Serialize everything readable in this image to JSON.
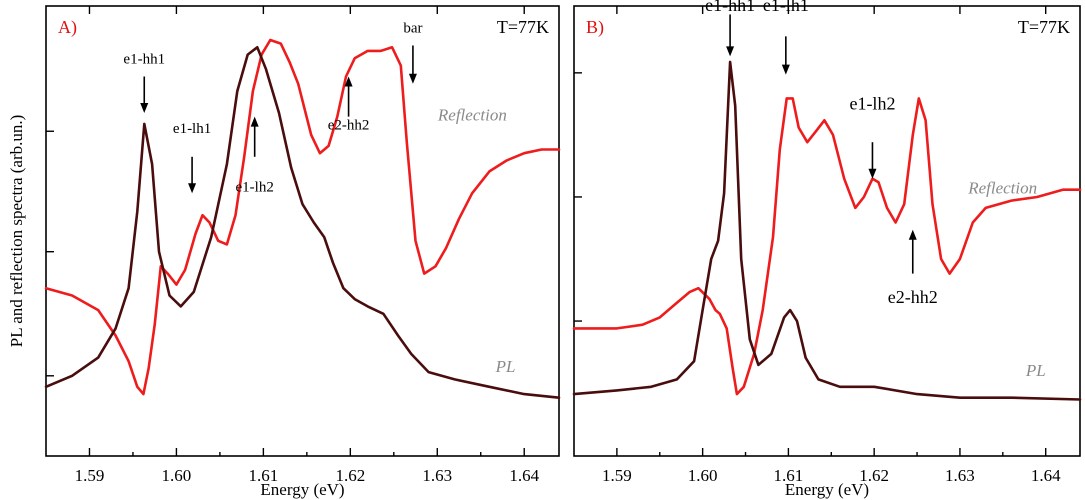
{
  "chart_data": [
    {
      "panel": "A)",
      "temperature": "T=77K",
      "type": "line",
      "xlabel": "Energy (eV)",
      "ylabel": "PL and reflection spectra (arb.un.)",
      "xlim": [
        1.585,
        1.644
      ],
      "ylim": [
        0,
        1
      ],
      "xticks": [
        1.59,
        1.6,
        1.61,
        1.62,
        1.63,
        1.64
      ],
      "xtick_labels": [
        "1.59",
        "1.60",
        "1.61",
        "1.62",
        "1.63",
        "1.64"
      ],
      "yticks": [
        0.08,
        0.42,
        0.75
      ],
      "series": [
        {
          "name": "Reflection",
          "color": "#ee1c1c",
          "label_at": [
            1.638,
            0.78
          ],
          "points": [
            [
              1.585,
              0.32
            ],
            [
              1.588,
              0.3
            ],
            [
              1.591,
              0.26
            ],
            [
              1.593,
              0.19
            ],
            [
              1.5945,
              0.12
            ],
            [
              1.5955,
              0.05
            ],
            [
              1.5962,
              0.03
            ],
            [
              1.5968,
              0.1
            ],
            [
              1.5975,
              0.22
            ],
            [
              1.5982,
              0.38
            ],
            [
              1.599,
              0.36
            ],
            [
              1.6,
              0.33
            ],
            [
              1.601,
              0.37
            ],
            [
              1.6022,
              0.47
            ],
            [
              1.603,
              0.52
            ],
            [
              1.6038,
              0.5
            ],
            [
              1.6048,
              0.45
            ],
            [
              1.6058,
              0.44
            ],
            [
              1.6068,
              0.52
            ],
            [
              1.6078,
              0.68
            ],
            [
              1.6088,
              0.86
            ],
            [
              1.6098,
              0.96
            ],
            [
              1.6108,
              1.0
            ],
            [
              1.612,
              0.99
            ],
            [
              1.613,
              0.94
            ],
            [
              1.614,
              0.88
            ],
            [
              1.6155,
              0.74
            ],
            [
              1.6165,
              0.69
            ],
            [
              1.6175,
              0.71
            ],
            [
              1.6185,
              0.79
            ],
            [
              1.6195,
              0.9
            ],
            [
              1.6205,
              0.95
            ],
            [
              1.622,
              0.97
            ],
            [
              1.6235,
              0.97
            ],
            [
              1.6248,
              0.98
            ],
            [
              1.6258,
              0.93
            ],
            [
              1.6265,
              0.72
            ],
            [
              1.6275,
              0.45
            ],
            [
              1.6285,
              0.36
            ],
            [
              1.6298,
              0.38
            ],
            [
              1.631,
              0.43
            ],
            [
              1.6325,
              0.51
            ],
            [
              1.634,
              0.58
            ],
            [
              1.636,
              0.64
            ],
            [
              1.638,
              0.67
            ],
            [
              1.64,
              0.69
            ],
            [
              1.642,
              0.7
            ],
            [
              1.644,
              0.7
            ]
          ]
        },
        {
          "name": "PL",
          "color": "#4a0d0d",
          "label_at": [
            1.639,
            0.09
          ],
          "points": [
            [
              1.585,
              0.05
            ],
            [
              1.588,
              0.08
            ],
            [
              1.591,
              0.13
            ],
            [
              1.593,
              0.21
            ],
            [
              1.5945,
              0.32
            ],
            [
              1.5955,
              0.53
            ],
            [
              1.5963,
              0.77
            ],
            [
              1.5972,
              0.66
            ],
            [
              1.598,
              0.42
            ],
            [
              1.5992,
              0.3
            ],
            [
              1.6005,
              0.27
            ],
            [
              1.602,
              0.31
            ],
            [
              1.604,
              0.46
            ],
            [
              1.6058,
              0.66
            ],
            [
              1.607,
              0.86
            ],
            [
              1.6082,
              0.96
            ],
            [
              1.6093,
              0.98
            ],
            [
              1.6103,
              0.92
            ],
            [
              1.6118,
              0.8
            ],
            [
              1.6132,
              0.65
            ],
            [
              1.6145,
              0.55
            ],
            [
              1.6158,
              0.5
            ],
            [
              1.617,
              0.46
            ],
            [
              1.618,
              0.39
            ],
            [
              1.6192,
              0.32
            ],
            [
              1.6205,
              0.29
            ],
            [
              1.622,
              0.27
            ],
            [
              1.6238,
              0.25
            ],
            [
              1.6255,
              0.19
            ],
            [
              1.627,
              0.14
            ],
            [
              1.629,
              0.09
            ],
            [
              1.632,
              0.07
            ],
            [
              1.636,
              0.05
            ],
            [
              1.64,
              0.03
            ],
            [
              1.644,
              0.02
            ]
          ]
        }
      ],
      "annotations": [
        {
          "text": "e1-hh1",
          "x": 1.5963,
          "text_y": 0.935,
          "arrow_from": 0.9,
          "arrow_to": 0.8
        },
        {
          "text": "e1-lh1",
          "x": 1.6018,
          "text_y": 0.745,
          "arrow_from": 0.68,
          "arrow_to": 0.58
        },
        {
          "text": "e1-lh2",
          "x": 1.609,
          "text_y": 0.585,
          "arrow_from": 0.68,
          "arrow_to": 0.79
        },
        {
          "text": "e2-hh2",
          "x": 1.6198,
          "text_y": 0.755,
          "arrow_from": 0.79,
          "arrow_to": 0.9
        },
        {
          "text": "bar",
          "x": 1.6272,
          "text_y": 1.02,
          "arrow_from": 0.985,
          "arrow_to": 0.88
        }
      ]
    },
    {
      "panel": "B)",
      "temperature": "T=77K",
      "type": "line",
      "xlabel": "Energy (eV)",
      "ylabel": "",
      "xlim": [
        1.585,
        1.644
      ],
      "ylim": [
        0,
        1
      ],
      "xticks": [
        1.59,
        1.6,
        1.61,
        1.62,
        1.63,
        1.64
      ],
      "xtick_labels": [
        "1.59",
        "1.60",
        "1.61",
        "1.62",
        "1.63",
        "1.64"
      ],
      "yticks": [
        0.23,
        0.57,
        0.91
      ],
      "series": [
        {
          "name": "Reflection",
          "color": "#ee1c1c",
          "label_at": [
            1.639,
            0.58
          ],
          "points": [
            [
              1.585,
              0.21
            ],
            [
              1.59,
              0.21
            ],
            [
              1.593,
              0.22
            ],
            [
              1.595,
              0.24
            ],
            [
              1.597,
              0.28
            ],
            [
              1.5985,
              0.31
            ],
            [
              1.5995,
              0.32
            ],
            [
              1.6008,
              0.29
            ],
            [
              1.6015,
              0.26
            ],
            [
              1.602,
              0.25
            ],
            [
              1.6028,
              0.21
            ],
            [
              1.6035,
              0.1
            ],
            [
              1.604,
              0.03
            ],
            [
              1.6048,
              0.05
            ],
            [
              1.606,
              0.14
            ],
            [
              1.607,
              0.26
            ],
            [
              1.6082,
              0.46
            ],
            [
              1.609,
              0.7
            ],
            [
              1.6098,
              0.84
            ],
            [
              1.6105,
              0.84
            ],
            [
              1.6112,
              0.76
            ],
            [
              1.6122,
              0.72
            ],
            [
              1.6132,
              0.75
            ],
            [
              1.6142,
              0.78
            ],
            [
              1.6152,
              0.74
            ],
            [
              1.6165,
              0.62
            ],
            [
              1.6178,
              0.54
            ],
            [
              1.6188,
              0.57
            ],
            [
              1.6198,
              0.62
            ],
            [
              1.6205,
              0.61
            ],
            [
              1.6215,
              0.54
            ],
            [
              1.6225,
              0.5
            ],
            [
              1.6235,
              0.55
            ],
            [
              1.6245,
              0.74
            ],
            [
              1.6252,
              0.84
            ],
            [
              1.626,
              0.78
            ],
            [
              1.6268,
              0.55
            ],
            [
              1.6278,
              0.4
            ],
            [
              1.6288,
              0.36
            ],
            [
              1.63,
              0.4
            ],
            [
              1.6315,
              0.5
            ],
            [
              1.633,
              0.54
            ],
            [
              1.636,
              0.56
            ],
            [
              1.639,
              0.57
            ],
            [
              1.642,
              0.59
            ],
            [
              1.644,
              0.59
            ]
          ]
        },
        {
          "name": "PL",
          "color": "#4a0d0d",
          "label_at": [
            1.64,
            0.08
          ],
          "points": [
            [
              1.585,
              0.03
            ],
            [
              1.59,
              0.04
            ],
            [
              1.594,
              0.05
            ],
            [
              1.597,
              0.07
            ],
            [
              1.599,
              0.12
            ],
            [
              1.6,
              0.26
            ],
            [
              1.601,
              0.4
            ],
            [
              1.6018,
              0.45
            ],
            [
              1.6025,
              0.58
            ],
            [
              1.6032,
              0.94
            ],
            [
              1.6038,
              0.82
            ],
            [
              1.6045,
              0.4
            ],
            [
              1.6055,
              0.18
            ],
            [
              1.6065,
              0.11
            ],
            [
              1.608,
              0.14
            ],
            [
              1.6095,
              0.24
            ],
            [
              1.6102,
              0.26
            ],
            [
              1.611,
              0.23
            ],
            [
              1.612,
              0.13
            ],
            [
              1.6135,
              0.07
            ],
            [
              1.616,
              0.05
            ],
            [
              1.62,
              0.05
            ],
            [
              1.625,
              0.03
            ],
            [
              1.63,
              0.02
            ],
            [
              1.636,
              0.02
            ],
            [
              1.644,
              0.015
            ]
          ]
        }
      ],
      "annotations": [
        {
          "text": "e1-hh1",
          "x": 1.6032,
          "text_y": 1.08,
          "arrow_from": 1.07,
          "arrow_to": 0.955
        },
        {
          "text": "e1-lh1",
          "x": 1.6097,
          "text_y": 1.08,
          "arrow_from": 1.01,
          "arrow_to": 0.905
        },
        {
          "text": "e1-lh2",
          "x": 1.6198,
          "text_y": 0.81,
          "arrow_from": 0.72,
          "arrow_to": 0.62
        },
        {
          "text": "e2-hh2",
          "x": 1.6245,
          "text_y": 0.28,
          "arrow_from": 0.36,
          "arrow_to": 0.48
        }
      ]
    }
  ]
}
